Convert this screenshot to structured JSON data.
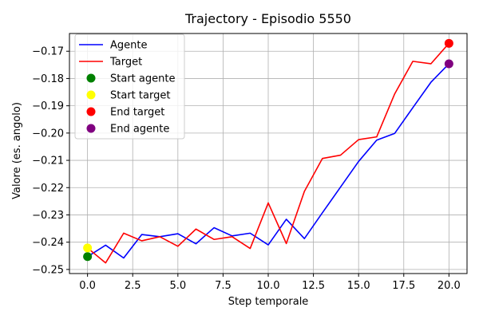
{
  "chart_data": {
    "type": "line",
    "title": "Trajectory - Episodio 5550",
    "xlabel": "Step temporale",
    "ylabel": "Valore (es. angolo)",
    "xlim": [
      -1,
      21
    ],
    "ylim": [
      -0.2515,
      -0.1635
    ],
    "xticks": [
      0,
      2.5,
      5,
      7.5,
      10,
      12.5,
      15,
      17.5,
      20
    ],
    "xtick_labels": [
      "0.0",
      "2.5",
      "5.0",
      "7.5",
      "10.0",
      "12.5",
      "15.0",
      "17.5",
      "20.0"
    ],
    "yticks": [
      -0.25,
      -0.24,
      -0.23,
      -0.22,
      -0.21,
      -0.2,
      -0.19,
      -0.18,
      -0.17
    ],
    "ytick_labels": [
      "−0.25",
      "−0.24",
      "−0.23",
      "−0.22",
      "−0.21",
      "−0.20",
      "−0.19",
      "−0.18",
      "−0.17"
    ],
    "grid": true,
    "legend_position": "top-left",
    "x": [
      0,
      1,
      2,
      3,
      4,
      5,
      6,
      7,
      8,
      9,
      10,
      11,
      12,
      13,
      14,
      15,
      16,
      17,
      18,
      19,
      20
    ],
    "series": [
      {
        "name": "Agente",
        "color": "#0000ff",
        "values": [
          -0.2453,
          -0.2411,
          -0.2458,
          -0.2372,
          -0.238,
          -0.2369,
          -0.2406,
          -0.2347,
          -0.2377,
          -0.2367,
          -0.241,
          -0.2316,
          -0.2387,
          -0.2292,
          -0.2198,
          -0.2104,
          -0.2026,
          -0.2001,
          -0.1907,
          -0.1814,
          -0.1746
        ]
      },
      {
        "name": "Target",
        "color": "#ff0000",
        "values": [
          -0.2421,
          -0.2476,
          -0.2367,
          -0.2395,
          -0.238,
          -0.2415,
          -0.2352,
          -0.239,
          -0.238,
          -0.2423,
          -0.2256,
          -0.2405,
          -0.2214,
          -0.2093,
          -0.2081,
          -0.2024,
          -0.2014,
          -0.1856,
          -0.1737,
          -0.1746,
          -0.1671
        ]
      }
    ],
    "markers": [
      {
        "name": "Start agente",
        "color": "#008000",
        "x": 0,
        "y": -0.2453
      },
      {
        "name": "Start target",
        "color": "#ffff00",
        "x": 0,
        "y": -0.2421
      },
      {
        "name": "End target",
        "color": "#ff0000",
        "x": 20,
        "y": -0.1671
      },
      {
        "name": "End agente",
        "color": "#800080",
        "x": 20,
        "y": -0.1746
      }
    ]
  }
}
